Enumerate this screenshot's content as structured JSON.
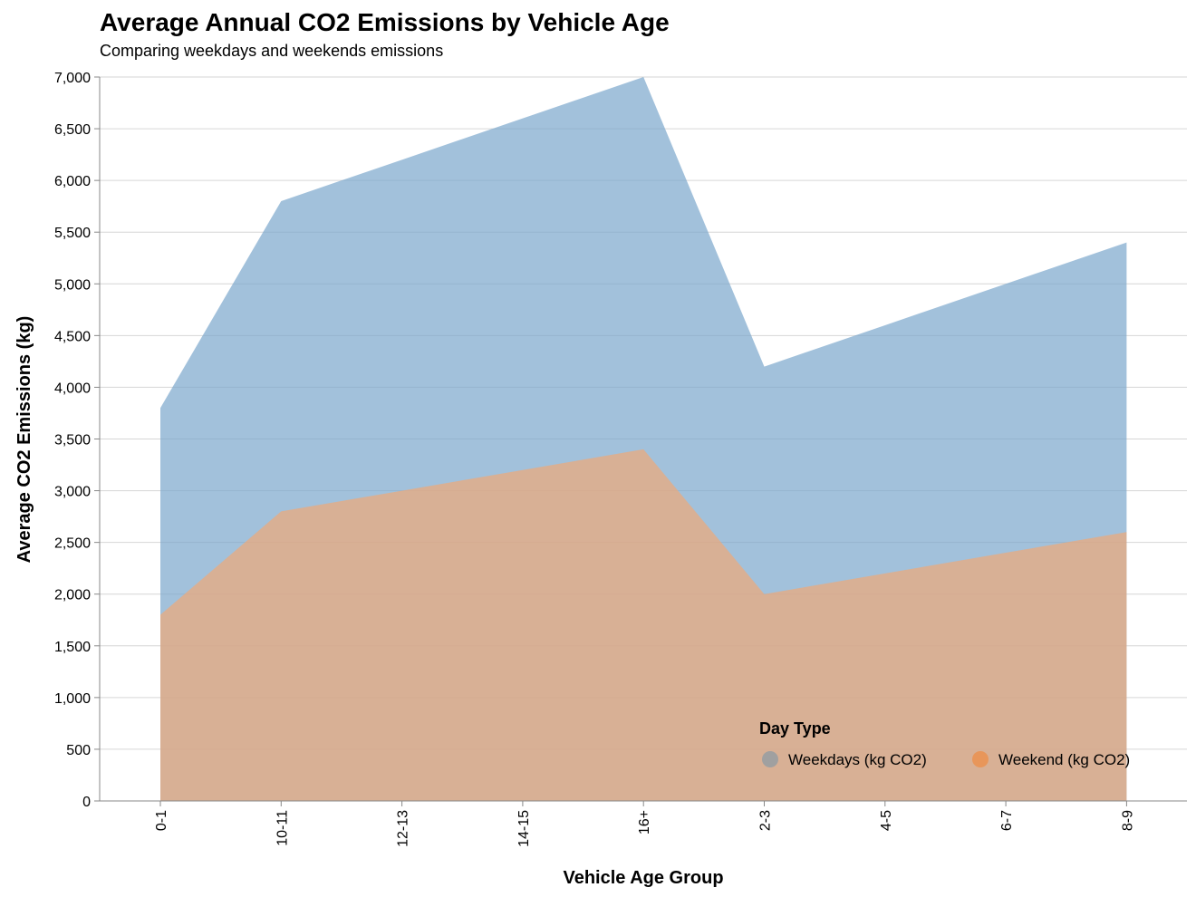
{
  "chart_data": {
    "type": "area",
    "title": "Average Annual CO2 Emissions by Vehicle Age",
    "subtitle": "Comparing weekdays and weekends emissions",
    "xlabel": "Vehicle Age Group",
    "ylabel": "Average CO2 Emissions (kg)",
    "categories": [
      "0-1",
      "10-11",
      "12-13",
      "14-15",
      "16+",
      "2-3",
      "4-5",
      "6-7",
      "8-9"
    ],
    "ylim": [
      0,
      7000
    ],
    "yticks": [
      0,
      500,
      1000,
      1500,
      2000,
      2500,
      3000,
      3500,
      4000,
      4500,
      5000,
      5500,
      6000,
      6500,
      7000
    ],
    "ytick_labels": [
      "0",
      "500",
      "1,000",
      "1,500",
      "2,000",
      "2,500",
      "3,000",
      "3,500",
      "4,000",
      "4,500",
      "5,000",
      "5,500",
      "6,000",
      "6,500",
      "7,000"
    ],
    "stacked": false,
    "grid": true,
    "legend": {
      "title": "Day Type",
      "placement": "bottom-right"
    },
    "series": [
      {
        "name": "Weekdays (kg CO2)",
        "color": "#7ba7cc",
        "legend_color": "#a0a0a0",
        "values": [
          3800,
          5800,
          6200,
          6600,
          7000,
          4200,
          4600,
          5000,
          5400
        ]
      },
      {
        "name": "Weekend (kg CO2)",
        "color": "#f0a877",
        "legend_color": "#e8965a",
        "values": [
          1800,
          2800,
          3000,
          3200,
          3400,
          2000,
          2200,
          2400,
          2600
        ]
      }
    ]
  }
}
